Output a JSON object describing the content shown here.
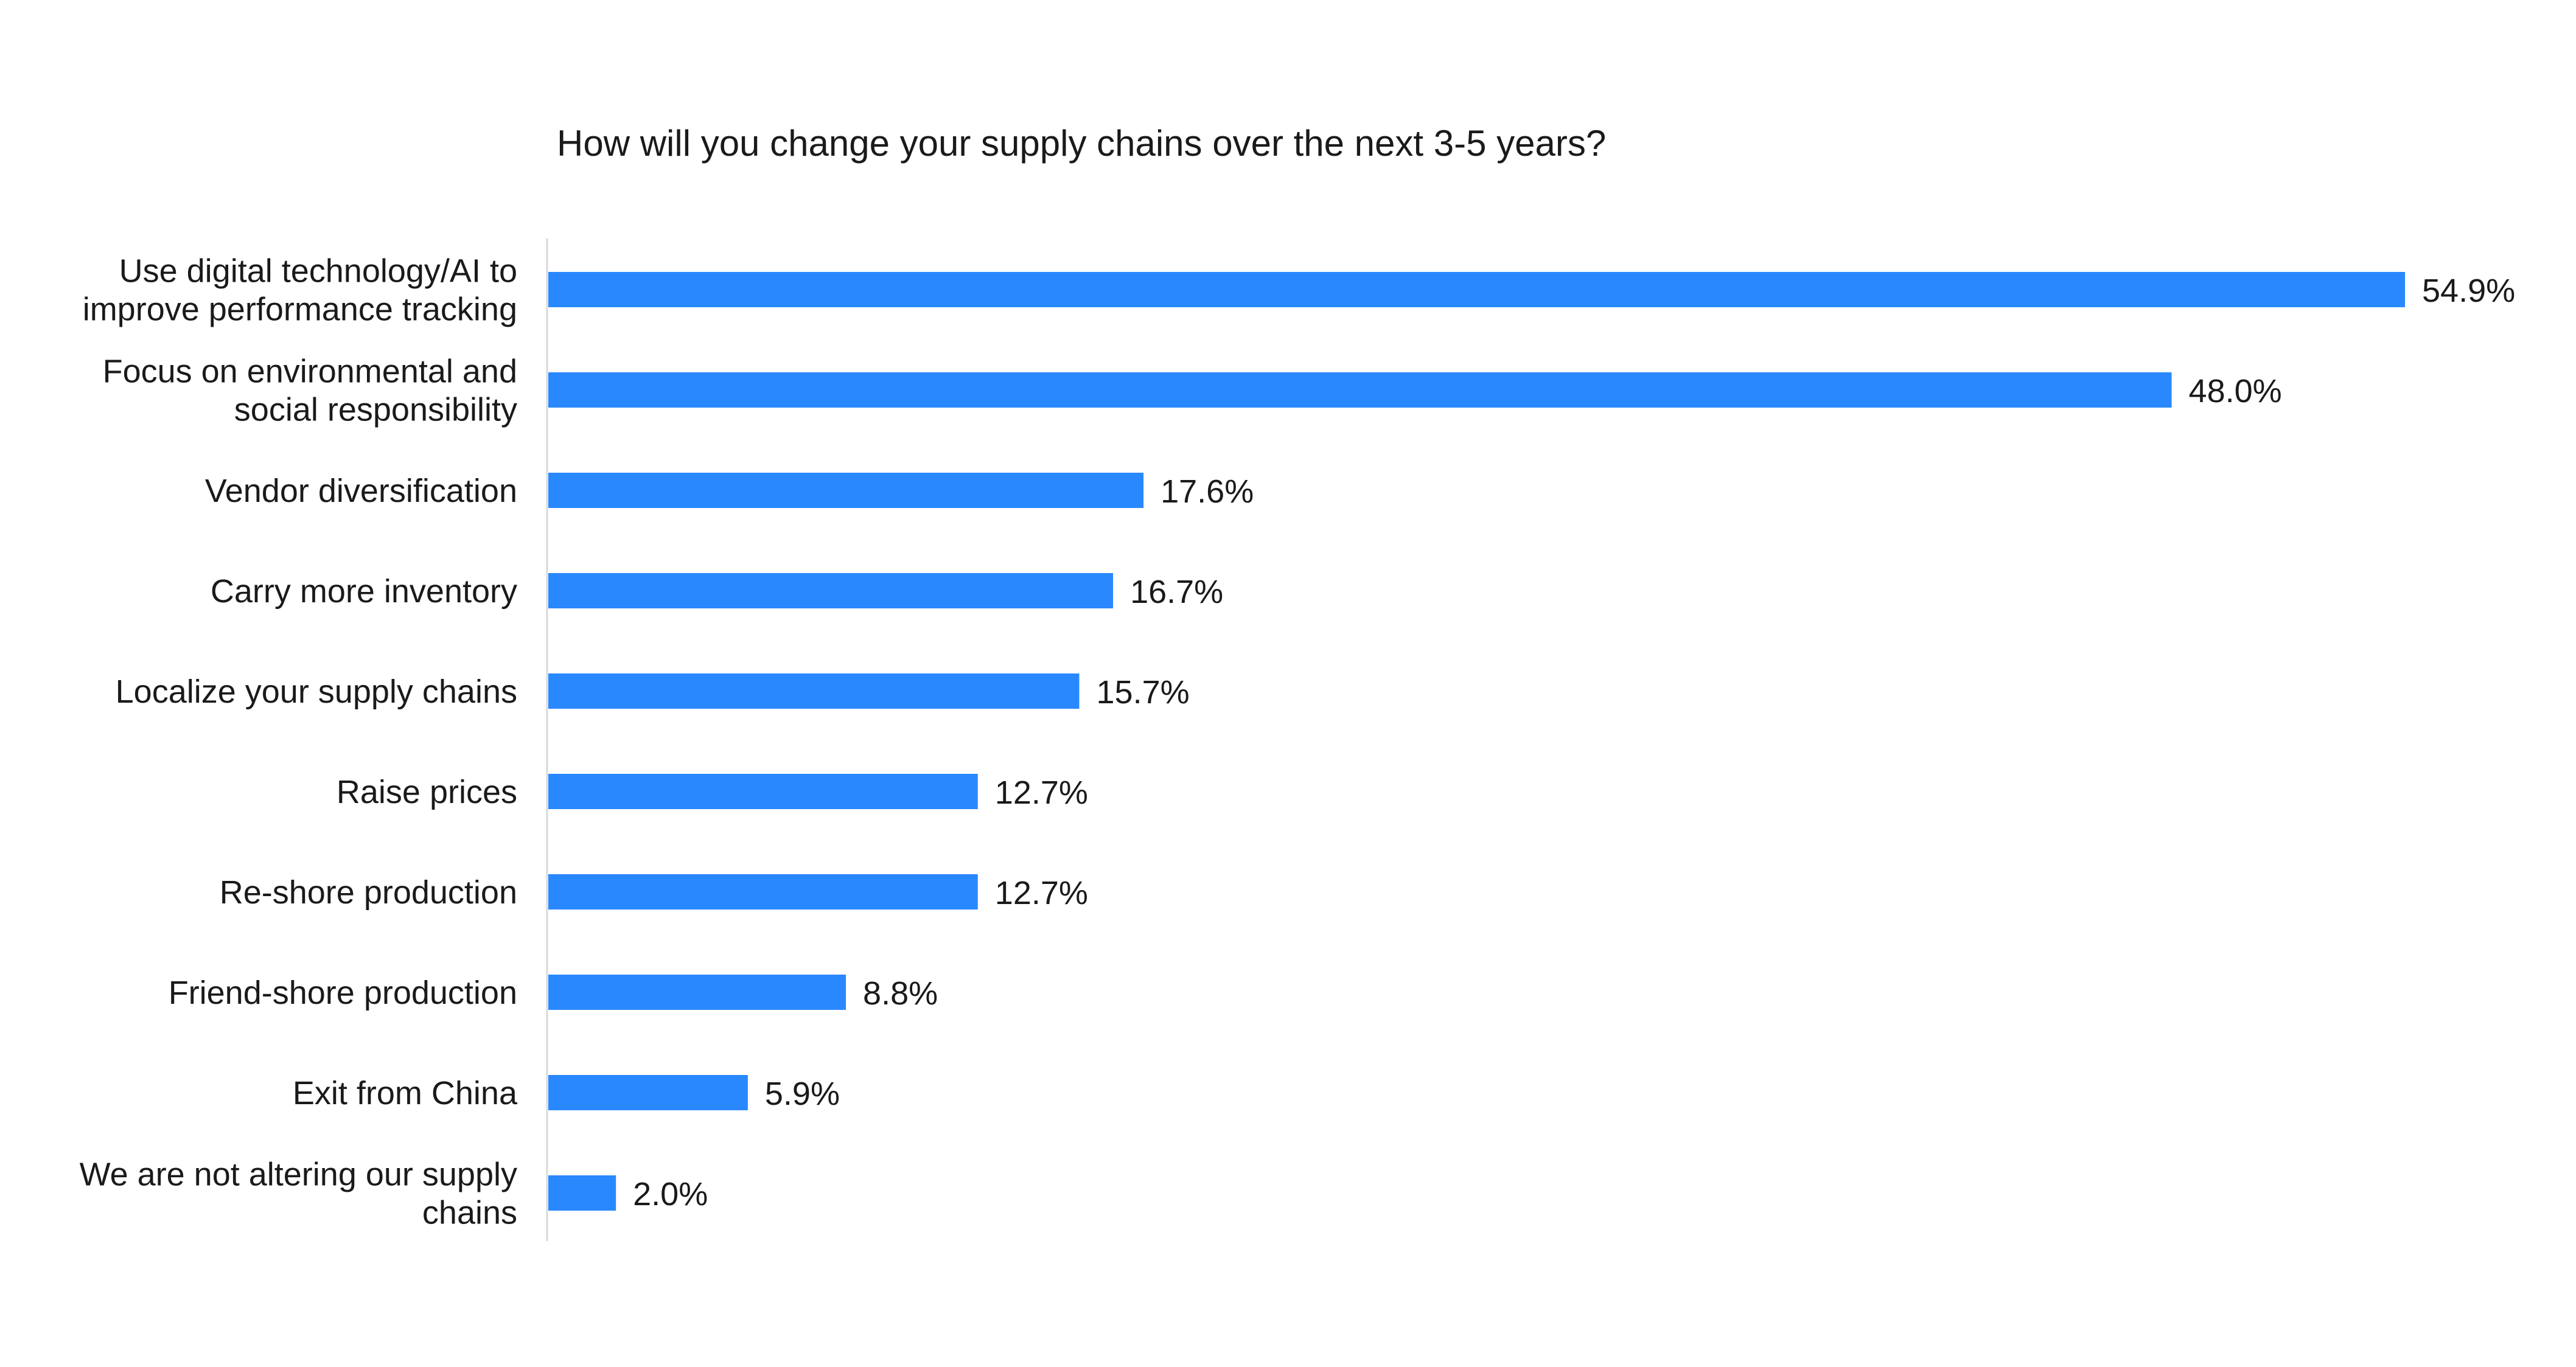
{
  "chart_data": {
    "type": "bar",
    "orientation": "horizontal",
    "title": "How will you change your supply chains over the next 3-5 years?",
    "xlabel": "",
    "ylabel": "",
    "categories": [
      [
        "Use digital technology/AI to",
        "improve performance tracking"
      ],
      [
        "Focus on environmental and",
        "social responsibility"
      ],
      [
        "Vendor diversification"
      ],
      [
        "Carry more inventory"
      ],
      [
        "Localize your supply chains"
      ],
      [
        "Raise prices"
      ],
      [
        "Re-shore production"
      ],
      [
        "Friend-shore production"
      ],
      [
        "Exit from China"
      ],
      [
        "We are not altering our supply",
        "chains"
      ]
    ],
    "values": [
      54.9,
      48.0,
      17.6,
      16.7,
      15.7,
      12.7,
      12.7,
      8.8,
      5.9,
      2.0
    ],
    "value_labels": [
      "54.9%",
      "48.0%",
      "17.6%",
      "16.7%",
      "15.7%",
      "12.7%",
      "12.7%",
      "8.8%",
      "5.9%",
      "2.0%"
    ],
    "unit": "%",
    "xlim": [
      0,
      54.9
    ],
    "grid": false,
    "legend": "none",
    "bar_color": "#2a88ff",
    "axis_color": "#d9d9d9"
  }
}
